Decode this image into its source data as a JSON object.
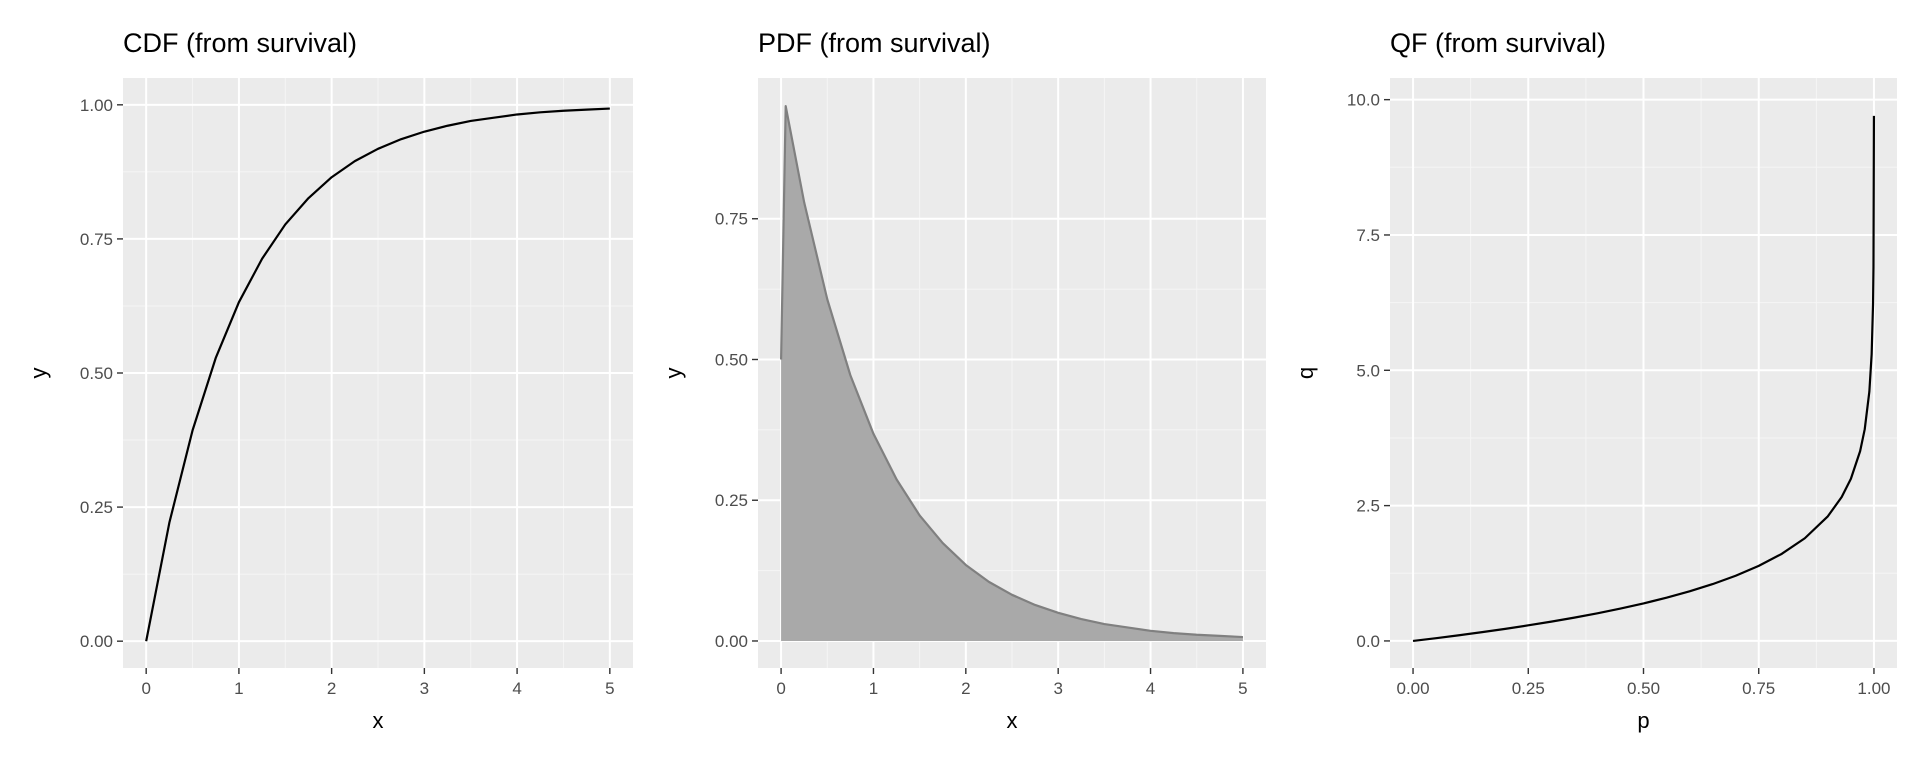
{
  "chart_data": [
    {
      "type": "line",
      "title": "CDF (from survival)",
      "xlabel": "x",
      "ylabel": "y",
      "xlim": [
        -0.25,
        5.25
      ],
      "ylim": [
        -0.05,
        1.05
      ],
      "x_ticks": [
        0,
        1,
        2,
        3,
        4,
        5
      ],
      "x_tick_labels": [
        "0",
        "1",
        "2",
        "3",
        "4",
        "5"
      ],
      "y_ticks": [
        0,
        0.25,
        0.5,
        0.75,
        1.0
      ],
      "y_tick_labels": [
        "0.00",
        "0.25",
        "0.50",
        "0.75",
        "1.00"
      ],
      "grid": true,
      "series": [
        {
          "x": [
            0,
            0.25,
            0.5,
            0.75,
            1,
            1.25,
            1.5,
            1.75,
            2,
            2.25,
            2.5,
            2.75,
            3,
            3.25,
            3.5,
            3.75,
            4,
            4.25,
            4.5,
            4.75,
            5
          ],
          "y": [
            0,
            0.221,
            0.393,
            0.528,
            0.632,
            0.713,
            0.777,
            0.826,
            0.865,
            0.895,
            0.918,
            0.936,
            0.95,
            0.961,
            0.97,
            0.976,
            0.982,
            0.986,
            0.989,
            0.991,
            0.993
          ],
          "color": "#000000"
        }
      ]
    },
    {
      "type": "area",
      "title": "PDF (from survival)",
      "xlabel": "x",
      "ylabel": "y",
      "xlim": [
        -0.25,
        5.25
      ],
      "ylim": [
        -0.048,
        1.0
      ],
      "x_ticks": [
        0,
        1,
        2,
        3,
        4,
        5
      ],
      "x_tick_labels": [
        "0",
        "1",
        "2",
        "3",
        "4",
        "5"
      ],
      "y_ticks": [
        0,
        0.25,
        0.5,
        0.75
      ],
      "y_tick_labels": [
        "0.00",
        "0.25",
        "0.50",
        "0.75"
      ],
      "grid": true,
      "series": [
        {
          "x": [
            0,
            0.05,
            0.25,
            0.5,
            0.75,
            1,
            1.25,
            1.5,
            1.75,
            2,
            2.25,
            2.5,
            2.75,
            3,
            3.25,
            3.5,
            3.75,
            4,
            4.25,
            4.5,
            4.75,
            5
          ],
          "y": [
            0.5,
            0.95,
            0.779,
            0.607,
            0.472,
            0.368,
            0.287,
            0.223,
            0.174,
            0.135,
            0.105,
            0.082,
            0.064,
            0.05,
            0.039,
            0.03,
            0.024,
            0.018,
            0.014,
            0.011,
            0.009,
            0.007
          ],
          "color": "#808080",
          "fill": "#a9a9a9"
        }
      ]
    },
    {
      "type": "line",
      "title": "QF (from survival)",
      "xlabel": "p",
      "ylabel": "q",
      "xlim": [
        -0.05,
        1.05
      ],
      "ylim": [
        -0.5,
        10.4
      ],
      "x_ticks": [
        0,
        0.25,
        0.5,
        0.75,
        1.0
      ],
      "x_tick_labels": [
        "0.00",
        "0.25",
        "0.50",
        "0.75",
        "1.00"
      ],
      "y_ticks": [
        0,
        2.5,
        5.0,
        7.5,
        10.0
      ],
      "y_tick_labels": [
        "0.0",
        "2.5",
        "5.0",
        "7.5",
        "10.0"
      ],
      "grid": true,
      "series": [
        {
          "x": [
            0,
            0.05,
            0.1,
            0.15,
            0.2,
            0.25,
            0.3,
            0.35,
            0.4,
            0.45,
            0.5,
            0.55,
            0.6,
            0.65,
            0.7,
            0.75,
            0.8,
            0.85,
            0.9,
            0.93,
            0.95,
            0.97,
            0.98,
            0.99,
            0.995,
            0.998,
            0.999,
            0.99995
          ],
          "y": [
            0,
            0.051,
            0.105,
            0.163,
            0.223,
            0.288,
            0.357,
            0.431,
            0.511,
            0.598,
            0.693,
            0.799,
            0.916,
            1.05,
            1.204,
            1.386,
            1.609,
            1.897,
            2.303,
            2.659,
            2.996,
            3.507,
            3.912,
            4.605,
            5.298,
            6.215,
            6.908,
            9.7
          ],
          "color": "#000000"
        }
      ]
    }
  ]
}
